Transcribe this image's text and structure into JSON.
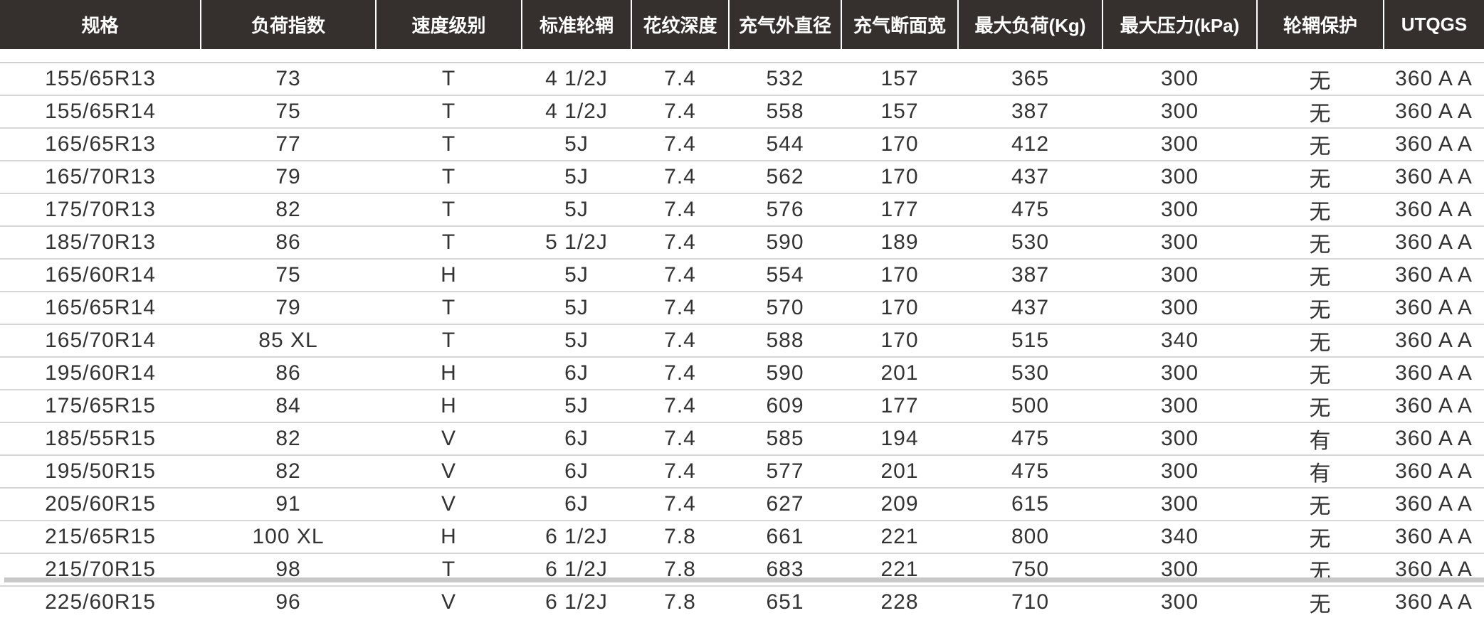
{
  "table": {
    "headers": [
      "规格",
      "负荷指数",
      "速度级别",
      "标准轮辋",
      "花纹深度",
      "充气外直径",
      "充气断面宽",
      "最大负荷(Kg)",
      "最大压力(kPa)",
      "轮辋保护",
      "UTQGS"
    ],
    "rows": [
      [
        "155/65R13",
        "73",
        "T",
        "4 1/2J",
        "7.4",
        "532",
        "157",
        "365",
        "300",
        "无",
        "360 A A"
      ],
      [
        "155/65R14",
        "75",
        "T",
        "4 1/2J",
        "7.4",
        "558",
        "157",
        "387",
        "300",
        "无",
        "360 A A"
      ],
      [
        "165/65R13",
        "77",
        "T",
        "5J",
        "7.4",
        "544",
        "170",
        "412",
        "300",
        "无",
        "360 A A"
      ],
      [
        "165/70R13",
        "79",
        "T",
        "5J",
        "7.4",
        "562",
        "170",
        "437",
        "300",
        "无",
        "360 A A"
      ],
      [
        "175/70R13",
        "82",
        "T",
        "5J",
        "7.4",
        "576",
        "177",
        "475",
        "300",
        "无",
        "360 A A"
      ],
      [
        "185/70R13",
        "86",
        "T",
        "5 1/2J",
        "7.4",
        "590",
        "189",
        "530",
        "300",
        "无",
        "360 A A"
      ],
      [
        "165/60R14",
        "75",
        "H",
        "5J",
        "7.4",
        "554",
        "170",
        "387",
        "300",
        "无",
        "360 A A"
      ],
      [
        "165/65R14",
        "79",
        "T",
        "5J",
        "7.4",
        "570",
        "170",
        "437",
        "300",
        "无",
        "360 A A"
      ],
      [
        "165/70R14",
        "85 XL",
        "T",
        "5J",
        "7.4",
        "588",
        "170",
        "515",
        "340",
        "无",
        "360 A A"
      ],
      [
        "195/60R14",
        "86",
        "H",
        "6J",
        "7.4",
        "590",
        "201",
        "530",
        "300",
        "无",
        "360 A A"
      ],
      [
        "175/65R15",
        "84",
        "H",
        "5J",
        "7.4",
        "609",
        "177",
        "500",
        "300",
        "无",
        "360 A A"
      ],
      [
        "185/55R15",
        "82",
        "V",
        "6J",
        "7.4",
        "585",
        "194",
        "475",
        "300",
        "有",
        "360 A A"
      ],
      [
        "195/50R15",
        "82",
        "V",
        "6J",
        "7.4",
        "577",
        "201",
        "475",
        "300",
        "有",
        "360 A A"
      ],
      [
        "205/60R15",
        "91",
        "V",
        "6J",
        "7.4",
        "627",
        "209",
        "615",
        "300",
        "无",
        "360 A A"
      ],
      [
        "215/65R15",
        "100 XL",
        "H",
        "6 1/2J",
        "7.8",
        "661",
        "221",
        "800",
        "340",
        "无",
        "360 A A"
      ],
      [
        "215/70R15",
        "98",
        "T",
        "6 1/2J",
        "7.8",
        "683",
        "221",
        "750",
        "300",
        "无",
        "360 A A"
      ],
      [
        "225/60R15",
        "96",
        "V",
        "6 1/2J",
        "7.8",
        "651",
        "228",
        "710",
        "300",
        "无",
        "360 A A"
      ]
    ]
  },
  "colors": {
    "header_bg": "#35302d",
    "header_text": "#ffffff",
    "cell_text": "#333333",
    "rule": "#d6d6d6"
  }
}
